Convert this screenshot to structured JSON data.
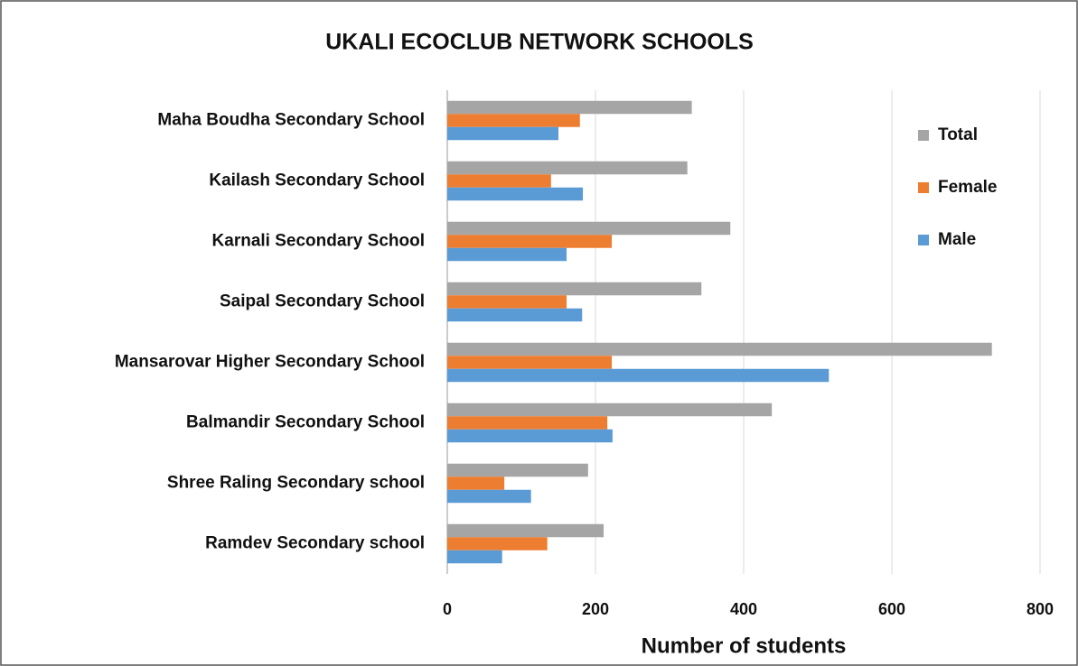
{
  "chart_data": {
    "type": "bar",
    "orientation": "horizontal",
    "title": "UKALI ECOCLUB NETWORK SCHOOLS",
    "x_label": "Number of students",
    "categories": [
      "Maha Boudha Secondary School",
      "Kailash Secondary School",
      "Karnali Secondary School",
      "Saipal Secondary School",
      "Mansarovar Higher Secondary School",
      "Balmandir Secondary School",
      "Shree Raling Secondary school",
      "Ramdev Secondary school"
    ],
    "series": [
      {
        "name": "Total",
        "color": "#a5a5a5",
        "values": [
          330,
          324,
          382,
          343,
          735,
          438,
          190,
          211
        ]
      },
      {
        "name": "Female",
        "color": "#ed7d31",
        "values": [
          179,
          140,
          222,
          161,
          222,
          216,
          77,
          135
        ]
      },
      {
        "name": "Male",
        "color": "#5b9bd5",
        "values": [
          150,
          183,
          161,
          182,
          515,
          223,
          113,
          74
        ]
      }
    ],
    "xlim": [
      0,
      800
    ],
    "xticks": [
      0,
      200,
      400,
      600,
      800
    ],
    "grid": true,
    "legend": "right"
  }
}
